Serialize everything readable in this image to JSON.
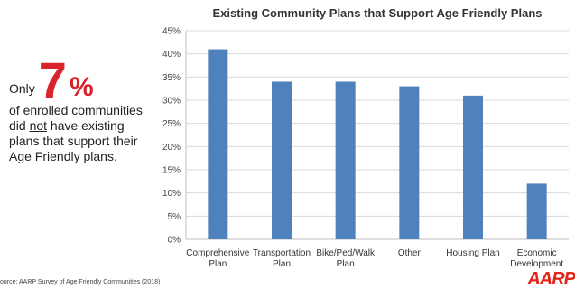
{
  "callout": {
    "only": "Only",
    "number": "7",
    "percent": "%",
    "line1": "of enrolled communities",
    "line2_pre": "did ",
    "line2_emph": "not",
    "line2_post": " have existing",
    "line3": "plans that support their",
    "line4": "Age Friendly plans."
  },
  "source": "ource: AARP Survey of Age Friendly Communities (2018)",
  "logo": "AARP",
  "colors": {
    "bar": "#4f81bd",
    "accent": "#d9242b",
    "grid": "#d9d9d9",
    "axis": "#bfbfbf"
  },
  "chart_data": {
    "type": "bar",
    "title": "Existing Community Plans that Support Age Friendly Plans",
    "categories": [
      [
        "Comprehensive",
        "Plan"
      ],
      [
        "Transportation",
        "Plan"
      ],
      [
        "Bike/Ped/Walk",
        "Plan"
      ],
      [
        "Other"
      ],
      [
        "Housing Plan"
      ],
      [
        "Economic",
        "Development"
      ]
    ],
    "values": [
      41,
      34,
      34,
      33,
      31,
      12
    ],
    "ylim": [
      0,
      45
    ],
    "yticks": [
      "0%",
      "5%",
      "10%",
      "15%",
      "20%",
      "25%",
      "30%",
      "35%",
      "40%",
      "45%"
    ],
    "grid": true
  }
}
